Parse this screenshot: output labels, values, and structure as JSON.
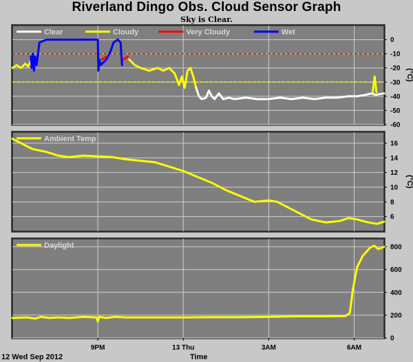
{
  "title": "Riverland Dingo Obs. Cloud Sensor Graph",
  "subtitle": "Sky is Clear.",
  "date_label": "12 Wed Sep 2012",
  "xlabel": "Time",
  "x_ticks": [
    {
      "label": "9PM",
      "t": 3.0
    },
    {
      "label": "13 Thu",
      "t": 6.0
    },
    {
      "label": "3AM",
      "t": 9.0
    },
    {
      "label": "6AM",
      "t": 12.0
    }
  ],
  "colors": {
    "background": "#c8c8c8",
    "plot_bg": "#7f7f7f",
    "grid": "#d0d0d0",
    "clear": "#ffffff",
    "cloudy": "#ffff00",
    "very_cloudy": "#ff0000",
    "wet": "#0000ff",
    "limit_red": "#ff0000",
    "limit_yellow": "#ffff00"
  },
  "chart_data": [
    {
      "type": "line",
      "name": "sky-temp-panel",
      "ylabel": "(°C)",
      "ylim": [
        -60,
        10
      ],
      "y_ticks": [
        0,
        -10,
        -20,
        -30,
        -40,
        -50,
        -60
      ],
      "legend": [
        "Clear",
        "Cloudy",
        "Very Cloudy",
        "Wet"
      ],
      "reference_lines": [
        {
          "y": -10,
          "color": "red"
        },
        {
          "y": -30,
          "color": "yellow"
        }
      ],
      "series": [
        {
          "name": "Cloudy",
          "color": "yellow",
          "points": [
            [
              0.0,
              -20
            ],
            [
              0.15,
              -18
            ],
            [
              0.3,
              -20
            ],
            [
              0.45,
              -17
            ],
            [
              0.55,
              -19
            ],
            [
              0.65,
              -15
            ]
          ]
        },
        {
          "name": "Wet",
          "color": "blue",
          "points": [
            [
              0.65,
              -12
            ],
            [
              0.68,
              -20
            ],
            [
              0.72,
              -10
            ],
            [
              0.76,
              -22
            ],
            [
              0.8,
              -12
            ],
            [
              0.85,
              -18
            ],
            [
              0.95,
              -2
            ],
            [
              1.2,
              0
            ],
            [
              1.5,
              0
            ],
            [
              2.0,
              0
            ],
            [
              2.5,
              0
            ],
            [
              3.0,
              0
            ],
            [
              3.02,
              -22
            ],
            [
              3.05,
              -14
            ],
            [
              3.1,
              -18
            ],
            [
              3.3,
              -14
            ],
            [
              3.45,
              -8
            ],
            [
              3.55,
              -2
            ],
            [
              3.7,
              0
            ],
            [
              3.8,
              -2
            ],
            [
              3.85,
              -18
            ]
          ]
        },
        {
          "name": "Very Cloudy",
          "color": "red",
          "points": [
            [
              3.15,
              -14
            ],
            [
              3.3,
              -12
            ]
          ]
        },
        {
          "name": "Very Cloudy",
          "color": "red",
          "points": [
            [
              3.9,
              -14
            ],
            [
              4.05,
              -12
            ]
          ]
        },
        {
          "name": "Cloudy",
          "color": "yellow",
          "points": [
            [
              4.1,
              -14
            ],
            [
              4.3,
              -18
            ],
            [
              4.5,
              -20
            ],
            [
              4.8,
              -22
            ],
            [
              5.1,
              -20
            ],
            [
              5.3,
              -22
            ],
            [
              5.5,
              -20
            ],
            [
              5.7,
              -24
            ],
            [
              5.85,
              -32
            ],
            [
              5.95,
              -26
            ],
            [
              6.05,
              -34
            ],
            [
              6.15,
              -22
            ],
            [
              6.25,
              -20
            ],
            [
              6.35,
              -26
            ],
            [
              6.45,
              -34
            ]
          ]
        },
        {
          "name": "Clear",
          "color": "white",
          "points": [
            [
              6.45,
              -34
            ],
            [
              6.55,
              -40
            ],
            [
              6.65,
              -42
            ],
            [
              6.8,
              -41
            ],
            [
              6.9,
              -36
            ],
            [
              7.0,
              -40
            ],
            [
              7.1,
              -42
            ],
            [
              7.25,
              -38
            ],
            [
              7.4,
              -42
            ],
            [
              7.6,
              -41
            ],
            [
              7.8,
              -42
            ],
            [
              8.2,
              -41
            ],
            [
              8.6,
              -42
            ],
            [
              9.0,
              -42
            ],
            [
              9.4,
              -41
            ],
            [
              9.8,
              -42
            ],
            [
              10.2,
              -41
            ],
            [
              10.6,
              -42
            ],
            [
              11.0,
              -41
            ],
            [
              11.4,
              -41
            ],
            [
              11.8,
              -40
            ],
            [
              12.1,
              -40
            ],
            [
              12.4,
              -39
            ],
            [
              12.6,
              -38
            ],
            [
              12.75,
              -39
            ],
            [
              13.05,
              -38
            ]
          ]
        },
        {
          "name": "Cloudy",
          "color": "yellow",
          "points": [
            [
              12.65,
              -37
            ],
            [
              12.72,
              -26
            ],
            [
              12.78,
              -37
            ]
          ]
        }
      ]
    },
    {
      "type": "line",
      "name": "ambient-temp-panel",
      "ylabel": "(°C)",
      "ylim": [
        4,
        17.5
      ],
      "y_ticks": [
        16,
        14,
        12,
        10,
        8,
        6
      ],
      "legend": [
        "Ambient Temp"
      ],
      "series": [
        {
          "name": "Ambient Temp",
          "color": "yellow",
          "points": [
            [
              0.0,
              16.6
            ],
            [
              0.3,
              16.0
            ],
            [
              0.7,
              15.2
            ],
            [
              1.2,
              14.8
            ],
            [
              1.6,
              14.3
            ],
            [
              2.0,
              14.1
            ],
            [
              2.5,
              14.3
            ],
            [
              3.0,
              14.2
            ],
            [
              3.5,
              14.1
            ],
            [
              4.0,
              13.8
            ],
            [
              4.5,
              13.6
            ],
            [
              5.0,
              13.4
            ],
            [
              5.5,
              12.8
            ],
            [
              6.0,
              12.2
            ],
            [
              6.5,
              11.4
            ],
            [
              7.0,
              10.6
            ],
            [
              7.5,
              9.6
            ],
            [
              8.0,
              8.8
            ],
            [
              8.5,
              8.0
            ],
            [
              9.0,
              8.2
            ],
            [
              9.3,
              8.0
            ],
            [
              9.6,
              7.4
            ],
            [
              10.0,
              6.6
            ],
            [
              10.5,
              5.6
            ],
            [
              11.0,
              5.2
            ],
            [
              11.5,
              5.4
            ],
            [
              11.8,
              5.8
            ],
            [
              12.1,
              5.6
            ],
            [
              12.5,
              5.2
            ],
            [
              12.8,
              5.0
            ],
            [
              13.05,
              5.3
            ]
          ]
        }
      ]
    },
    {
      "type": "line",
      "name": "daylight-panel",
      "ylabel": "",
      "ylim": [
        0,
        870
      ],
      "y_ticks": [
        800,
        600,
        400,
        200,
        0
      ],
      "legend": [
        "Daylight"
      ],
      "series": [
        {
          "name": "Daylight",
          "color": "yellow",
          "points": [
            [
              0.0,
              175
            ],
            [
              0.5,
              180
            ],
            [
              0.8,
              170
            ],
            [
              1.0,
              185
            ],
            [
              1.3,
              175
            ],
            [
              1.6,
              180
            ],
            [
              2.0,
              175
            ],
            [
              2.5,
              185
            ],
            [
              2.95,
              180
            ],
            [
              3.0,
              145
            ],
            [
              3.05,
              185
            ],
            [
              3.3,
              175
            ],
            [
              3.6,
              185
            ],
            [
              4.0,
              180
            ],
            [
              5.0,
              180
            ],
            [
              6.0,
              180
            ],
            [
              7.0,
              182
            ],
            [
              8.0,
              182
            ],
            [
              9.0,
              185
            ],
            [
              10.0,
              190
            ],
            [
              11.0,
              190
            ],
            [
              11.7,
              192
            ],
            [
              11.85,
              220
            ],
            [
              11.95,
              420
            ],
            [
              12.1,
              620
            ],
            [
              12.3,
              720
            ],
            [
              12.55,
              790
            ],
            [
              12.7,
              810
            ],
            [
              12.85,
              780
            ],
            [
              13.05,
              800
            ]
          ]
        }
      ]
    }
  ]
}
